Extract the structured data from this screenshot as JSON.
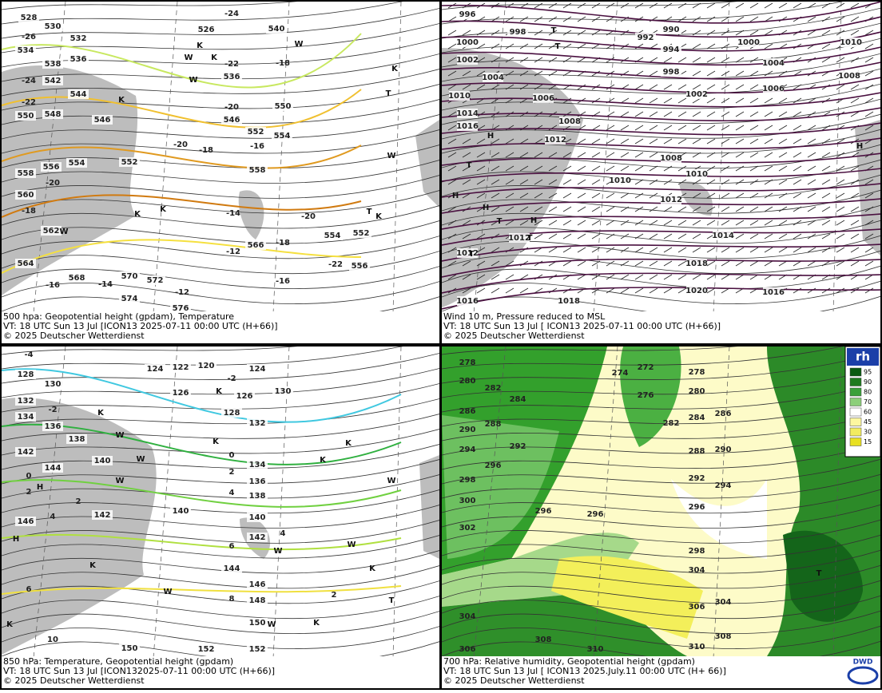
{
  "panels": [
    {
      "caption": "500 hpa: Geopotential height (gpdam), Temperature",
      "valid": "VT: 18 UTC Sun  13 Jul [ICON13 2025-07-11 00:00 UTC  (H+66)]",
      "copyright": "© 2025 Deutscher Wetterdienst",
      "height_labels": [
        528,
        530,
        532,
        534,
        536,
        538,
        542,
        544,
        546,
        548,
        550,
        526,
        536,
        540,
        546,
        550,
        552,
        554,
        552,
        554,
        556,
        558,
        558,
        560,
        562,
        564,
        566,
        568,
        570,
        572,
        574,
        576,
        556,
        554,
        552
      ],
      "temp_labels": [
        -26,
        -24,
        -22,
        -20,
        -18,
        -16,
        -14,
        -12,
        -12,
        -14,
        -16,
        -18,
        -20,
        -20,
        -22,
        -24,
        -18,
        -20,
        -18,
        -22,
        -16
      ],
      "symbols": [
        "K",
        "W",
        "K",
        "W",
        "K",
        "W",
        "T",
        "K",
        "W",
        "K",
        "K",
        "T",
        "K",
        "W"
      ]
    },
    {
      "caption": "Wind 10 m, Pressure reduced to MSL",
      "valid": "VT: 18 UTC Sun  13 Jul [ ICON13 2025-07-11 00:00 UTC  (H+66)]",
      "copyright": "© 2025 Deutscher Wetterdienst",
      "height_labels": [
        996,
        998,
        1000,
        1002,
        1004,
        1010,
        1014,
        1016,
        1006,
        1008,
        1012,
        992,
        990,
        994,
        998,
        1000,
        1004,
        1006,
        1008,
        1010,
        1002,
        1008,
        1010,
        1010,
        1012,
        1014,
        1018,
        1020,
        1016,
        1018,
        1016,
        1012,
        1012
      ],
      "symbols": [
        "T",
        "T",
        "H",
        "T",
        "H",
        "T",
        "H",
        "H",
        "T",
        "T",
        "H"
      ]
    },
    {
      "caption": "850 hPa:  Temperature, Geopotential height (gpdam)",
      "valid": "VT: 18 UTC Sun  13 Jul [ICON132025-07-11 00:00 UTC  (H+66)]",
      "copyright": "© 2025 Deutscher Wetterdienst",
      "height_labels": [
        128,
        130,
        132,
        134,
        136,
        138,
        140,
        142,
        144,
        146,
        142,
        124,
        122,
        120,
        126,
        124,
        126,
        128,
        130,
        132,
        134,
        136,
        138,
        140,
        142,
        140,
        144,
        146,
        148,
        150,
        150,
        152,
        152
      ],
      "temp_labels": [
        -4,
        -2,
        -2,
        0,
        2,
        4,
        6,
        8,
        10,
        0,
        2,
        2,
        4,
        6,
        2,
        4
      ],
      "symbols": [
        "K",
        "W",
        "K",
        "W",
        "W",
        "K",
        "H",
        "H",
        "K",
        "W",
        "K",
        "K",
        "W",
        "W",
        "K",
        "T",
        "W",
        "K",
        "K",
        "W"
      ]
    },
    {
      "caption": "700 hPa:  Relative humidity, Geopotential height (gpdam)",
      "valid": "VT: 18 UTC Sun  13 Jul [ ICON13  2025.July.11 00:00 UTC  (H+ 66)]",
      "copyright": "© 2025 Deutscher Wetterdienst",
      "height_labels": [
        278,
        280,
        282,
        284,
        286,
        288,
        290,
        292,
        294,
        296,
        298,
        300,
        302,
        296,
        296,
        274,
        272,
        276,
        278,
        280,
        282,
        284,
        286,
        288,
        290,
        292,
        294,
        296,
        298,
        304,
        306,
        304,
        308,
        310,
        310,
        308,
        304,
        306
      ],
      "symbols": [
        "T"
      ]
    }
  ],
  "legend": {
    "title": "rh",
    "levels": [
      95,
      90,
      80,
      70,
      60,
      45,
      30,
      15
    ]
  },
  "logo": "DWD"
}
